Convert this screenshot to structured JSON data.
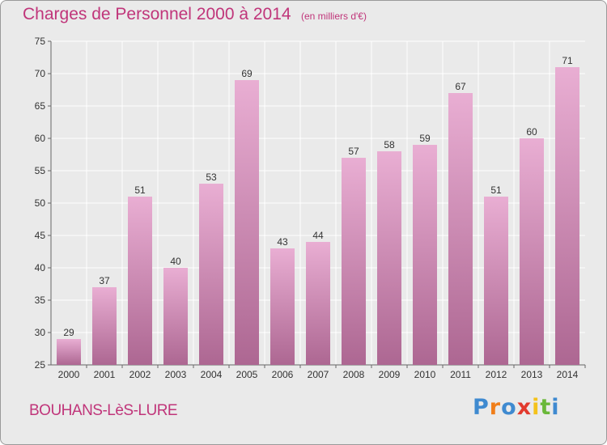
{
  "header": {
    "title": "Charges de Personnel 2000 à 2014",
    "subtitle": "(en milliers d'€)"
  },
  "footer": {
    "commune": "BOUHANS-LèS-LURE",
    "logo": {
      "text": "Proxiti",
      "letter_colors": [
        "#3f8ad0",
        "#f07e1a",
        "#3f8ad0",
        "#e23a2e",
        "#f4c21b",
        "#6ab83a",
        "#3f8ad0"
      ]
    }
  },
  "colors": {
    "bar_light": "#e9aed3",
    "bar_dark": "#ad6792",
    "text_accent": "#c0357a",
    "background": "#eaeaea"
  },
  "chart_data": {
    "type": "bar",
    "categories": [
      "2000",
      "2001",
      "2002",
      "2003",
      "2004",
      "2005",
      "2006",
      "2007",
      "2008",
      "2009",
      "2010",
      "2011",
      "2012",
      "2013",
      "2014"
    ],
    "values": [
      29,
      37,
      51,
      40,
      53,
      69,
      43,
      44,
      57,
      58,
      59,
      67,
      51,
      60,
      71
    ],
    "title": "Charges de Personnel 2000 à 2014",
    "xlabel": "",
    "ylabel": "",
    "ylim": [
      25,
      75
    ],
    "yticks": [
      25,
      30,
      35,
      40,
      45,
      50,
      55,
      60,
      65,
      70,
      75
    ],
    "grid": true,
    "data_labels": true
  }
}
